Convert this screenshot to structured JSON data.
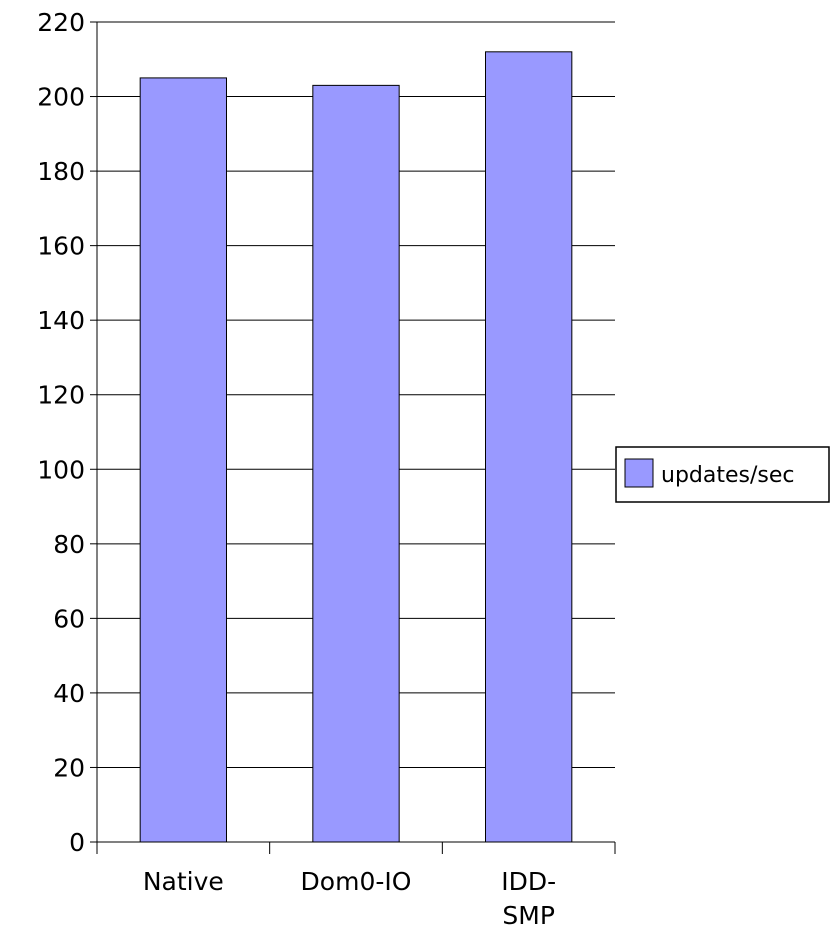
{
  "chart_data": {
    "type": "bar",
    "categories": [
      [
        "Native"
      ],
      [
        "Dom0-IO"
      ],
      [
        "IDD-",
        "SMP"
      ]
    ],
    "series": [
      {
        "name": "updates/sec",
        "values": [
          205,
          203,
          212
        ],
        "color": "#9999ff"
      }
    ],
    "title": "",
    "xlabel": "",
    "ylabel": "",
    "ylim": [
      0,
      220
    ],
    "yticks": [
      0,
      20,
      40,
      60,
      80,
      100,
      120,
      140,
      160,
      180,
      200,
      220
    ],
    "grid": true,
    "legend": "right"
  }
}
